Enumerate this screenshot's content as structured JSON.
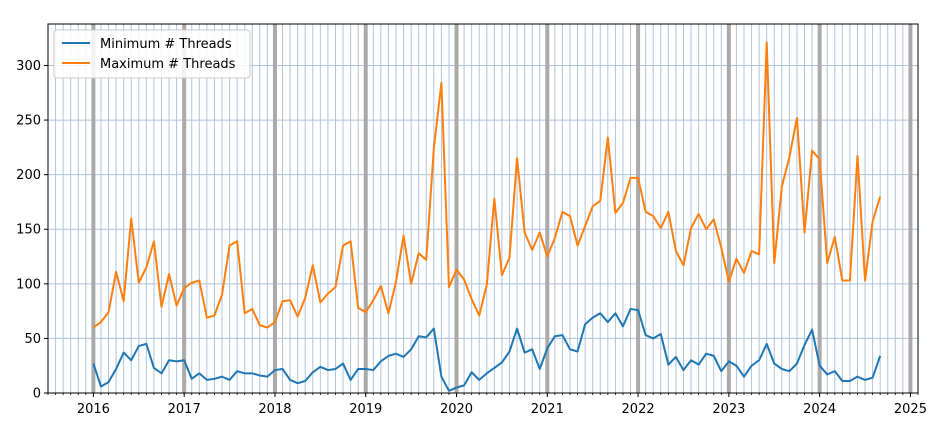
{
  "chart_data": {
    "type": "line",
    "title": "",
    "xlabel": "",
    "ylabel": "",
    "x_axis": {
      "type": "date",
      "range": [
        "2015-07-01",
        "2025-02-01"
      ],
      "major_ticks": [
        "2016",
        "2017",
        "2018",
        "2019",
        "2020",
        "2021",
        "2022",
        "2023",
        "2024",
        "2025"
      ],
      "minor_ticks": "monthly",
      "gridlines": "monthly light, yearly bold"
    },
    "y_axis": {
      "range": [
        0,
        338
      ],
      "ticks": [
        0,
        50,
        100,
        150,
        200,
        250,
        300
      ],
      "tick_labels": [
        "0",
        "50",
        "100",
        "150",
        "200",
        "250",
        "300"
      ]
    },
    "legend": {
      "position": "top-left"
    },
    "series": [
      {
        "name": "Minimum # Threads",
        "color": "#1f77b4",
        "start": "2016-01",
        "values": [
          27,
          6,
          10,
          22,
          37,
          30,
          43,
          45,
          23,
          18,
          30,
          29,
          30,
          13,
          18,
          12,
          13,
          15,
          12,
          20,
          18,
          18,
          16,
          15,
          21,
          22,
          12,
          9,
          11,
          19,
          24,
          21,
          22,
          27,
          12,
          22,
          22,
          21,
          29,
          34,
          36,
          33,
          40,
          52,
          51,
          59,
          15,
          2,
          5,
          7,
          19,
          12,
          18,
          23,
          28,
          38,
          59,
          37,
          40,
          22,
          41,
          52,
          53,
          40,
          38,
          63,
          69,
          73,
          65,
          73,
          61,
          77,
          76,
          53,
          50,
          54,
          26,
          33,
          21,
          30,
          26,
          36,
          34,
          20,
          29,
          25,
          15,
          25,
          30,
          45,
          27,
          22,
          20,
          27,
          44,
          58,
          25,
          17,
          20,
          11,
          11,
          15,
          12,
          14,
          34
        ]
      },
      {
        "name": "Maximum # Threads",
        "color": "#ff7f0e",
        "start": "2016-01",
        "values": [
          60,
          65,
          74,
          111,
          84,
          160,
          101,
          115,
          139,
          79,
          109,
          80,
          96,
          101,
          103,
          69,
          71,
          90,
          135,
          139,
          73,
          77,
          62,
          60,
          65,
          84,
          85,
          70,
          87,
          117,
          83,
          91,
          97,
          135,
          139,
          78,
          74,
          85,
          98,
          73,
          102,
          144,
          100,
          128,
          122,
          224,
          284,
          97,
          113,
          104,
          86,
          71,
          99,
          178,
          108,
          124,
          215,
          147,
          131,
          147,
          125,
          142,
          166,
          162,
          135,
          153,
          171,
          176,
          234,
          165,
          174,
          197,
          197,
          166,
          162,
          151,
          166,
          130,
          117,
          151,
          164,
          150,
          159,
          133,
          102,
          123,
          110,
          130,
          127,
          321,
          119,
          189,
          216,
          252,
          147,
          222,
          214,
          119,
          143,
          103,
          103,
          217,
          103,
          157,
          180
        ]
      }
    ]
  }
}
